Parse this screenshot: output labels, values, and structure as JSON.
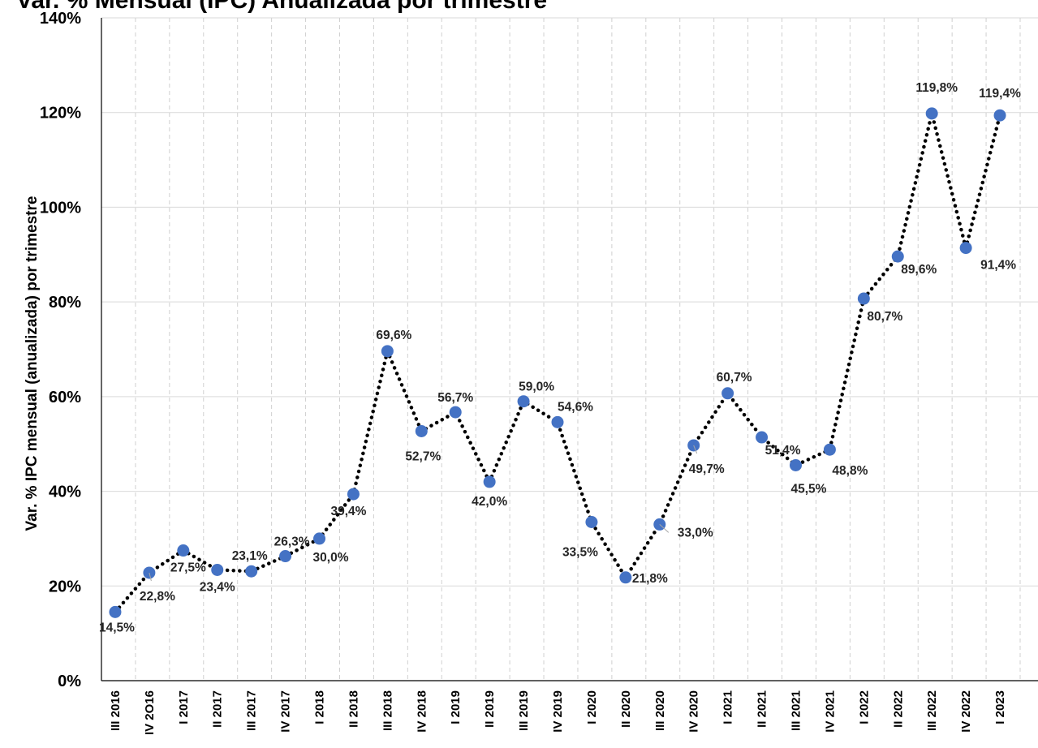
{
  "chart_data": {
    "type": "line",
    "title": "Var. % Mensual (IPC) Anualizada por trimestre",
    "xlabel": "",
    "ylabel": "Var. % IPC mensual (anualizada) por trimestre",
    "ylim": [
      0,
      140
    ],
    "yticks": [
      0,
      20,
      40,
      60,
      80,
      100,
      120,
      140
    ],
    "ytick_labels": [
      "0%",
      "20%",
      "40%",
      "60%",
      "80%",
      "100%",
      "120%",
      "140%"
    ],
    "grid": true,
    "categories": [
      "III 2016",
      "IV 2O16",
      "I 2017",
      "II 2017",
      "III 2017",
      "IV 2017",
      "I 2018",
      "II 2018",
      "III 2018",
      "IV 2018",
      "I 2019",
      "II 2019",
      "III 2019",
      "IV 2019",
      "I 2020",
      "II 2020",
      "III 2020",
      "IV 2020",
      "I 2021",
      "II 2021",
      "III 2021",
      "IV 2021",
      "I 2022",
      "II 2022",
      "III 2022",
      "IV 2022",
      "I 2023"
    ],
    "series": [
      {
        "values": [
          14.5,
          22.8,
          27.5,
          23.4,
          23.1,
          26.3,
          30.0,
          39.4,
          69.6,
          52.7,
          56.7,
          42.0,
          59.0,
          54.6,
          33.5,
          21.8,
          33.0,
          49.7,
          60.7,
          51.4,
          45.5,
          48.8,
          80.7,
          89.6,
          119.8,
          91.4,
          119.4
        ],
        "data_labels": [
          "14,5%",
          "22,8%",
          "27,5%",
          "23,4%",
          "23,1%",
          "26,3%",
          "30,0%",
          "39,4%",
          "69,6%",
          "52,7%",
          "56,7%",
          "42,0%",
          "59,0%",
          "54,6%",
          "33,5%",
          "21,8%",
          "33,0%",
          "49,7%",
          "60,7%",
          "51,4%",
          "45,5%",
          "48,8%",
          "80,7%",
          "89,6%",
          "119,8%",
          "91,4%",
          "119,4%"
        ],
        "color": "#4472C4",
        "line_color": "#000000",
        "line_style": "dotted"
      }
    ]
  }
}
